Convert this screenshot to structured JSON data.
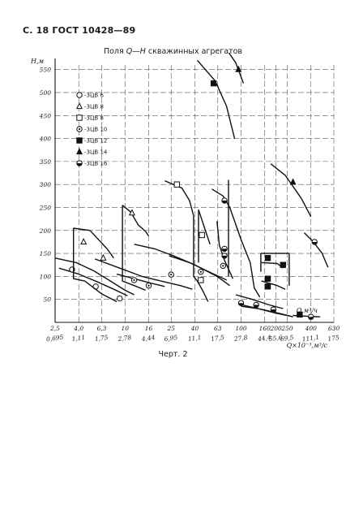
{
  "page": {
    "header": "С. 18 ГОСТ 10428—89",
    "title_prefix": "Поля ",
    "title_q": "Q",
    "title_dash": "—",
    "title_h": "H",
    "title_suffix": " скважинных агрегатов",
    "caption": "Черт. 2"
  },
  "chart_data": {
    "type": "line",
    "title": "Поля Q—H скважинных агрегатов",
    "ylabel": "H,м",
    "xlabel_top": "Q,м³/ч",
    "xlabel_bottom": "Q×10⁻³,м³/с",
    "ylim": [
      0,
      560
    ],
    "y_ticks": [
      50,
      100,
      150,
      200,
      250,
      300,
      350,
      400,
      450,
      500,
      550
    ],
    "y_tick_labels": [
      "50",
      "100",
      "150",
      "200",
      "250",
      "300",
      "350",
      "400",
      "450",
      "500",
      "550"
    ],
    "x_scale": "log",
    "xlim": [
      2.5,
      630
    ],
    "x_ticks_top": [
      "2,5",
      "4,0",
      "6,3",
      "10",
      "16",
      "25",
      "40",
      "63",
      "100",
      "160",
      "200",
      "250",
      "400",
      "630"
    ],
    "x_ticks_top_values": [
      2.5,
      4,
      6.3,
      10,
      16,
      25,
      40,
      63,
      100,
      160,
      200,
      250,
      400,
      630
    ],
    "x_ticks_bottom": [
      "0,695",
      "1,11",
      "1,75",
      "2,78",
      "4,44",
      "6,95",
      "11,1",
      "17,5",
      "27,8",
      "44,4",
      "55,6",
      "69,5",
      "111,1",
      "175"
    ],
    "grid": true,
    "legend_position": "top-left",
    "legend": [
      {
        "label": "-3ЦВ 6",
        "marker": "circle-open"
      },
      {
        "label": "-3ЦВ 8",
        "marker": "triangle-open"
      },
      {
        "label": "-3ЦВ 8",
        "marker": "square-open"
      },
      {
        "label": "-3ЦВ 10",
        "marker": "circle-dot"
      },
      {
        "label": "-3ЦВ 12",
        "marker": "square-filled"
      },
      {
        "label": "-3ЦВ 14",
        "marker": "triangle-filled"
      },
      {
        "label": "-3ЦВ 16",
        "marker": "circle-half"
      }
    ],
    "series": [
      {
        "marker": "circle-open",
        "pts": [
          [
            3.5,
            115
          ],
          [
            5.6,
            78
          ],
          [
            9.0,
            52
          ]
        ],
        "outlines": [
          [
            [
              2.5,
              140
            ],
            [
              3.8,
              130
            ],
            [
              5.4,
              112
            ],
            [
              7.5,
              90
            ],
            [
              10,
              70
            ],
            [
              12,
              60
            ]
          ],
          [
            [
              2.7,
              118
            ],
            [
              4.0,
              105
            ],
            [
              5.8,
              88
            ],
            [
              8.0,
              72
            ],
            [
              10.5,
              58
            ]
          ]
        ]
      },
      {
        "marker": "triangle-open",
        "pts": [
          [
            4.4,
            175
          ],
          [
            6.5,
            140
          ],
          [
            11.5,
            238
          ]
        ],
        "outlines": [
          [
            [
              3.6,
              205
            ],
            [
              3.6,
              95
            ],
            [
              4.5,
              90
            ],
            [
              6.3,
              62
            ],
            [
              8.5,
              45
            ]
          ],
          [
            [
              3.6,
              205
            ],
            [
              5.0,
              200
            ],
            [
              7.0,
              160
            ],
            [
              8.0,
              140
            ]
          ],
          [
            [
              9.5,
              255
            ],
            [
              9.5,
              90
            ],
            [
              12,
              80
            ],
            [
              15,
              70
            ]
          ],
          [
            [
              9.5,
              255
            ],
            [
              11.2,
              240
            ],
            [
              13,
              212
            ],
            [
              15,
              198
            ],
            [
              16,
              188
            ]
          ]
        ]
      },
      {
        "marker": "square-open",
        "pts": [
          [
            28,
            300
          ],
          [
            46,
            190
          ],
          [
            45,
            92
          ]
        ],
        "outlines": [
          [
            [
              22,
              308
            ],
            [
              31,
              292
            ],
            [
              36,
              265
            ],
            [
              39,
              232
            ]
          ],
          [
            [
              39,
              232
            ],
            [
              39,
              100
            ],
            [
              42,
              90
            ],
            [
              47,
              68
            ],
            [
              52,
              45
            ]
          ],
          [
            [
              43,
              245
            ],
            [
              50,
              195
            ],
            [
              54,
              170
            ]
          ],
          [
            [
              43,
              245
            ],
            [
              43,
              130
            ]
          ]
        ]
      },
      {
        "marker": "circle-dot",
        "pts": [
          [
            12,
            92
          ],
          [
            16,
            80
          ],
          [
            25,
            104
          ],
          [
            45,
            110
          ],
          [
            70,
            123
          ]
        ],
        "outlines": [
          [
            [
              5.5,
              138
            ],
            [
              9,
              118
            ],
            [
              14,
              100
            ],
            [
              22,
              88
            ],
            [
              30,
              80
            ],
            [
              38,
              72
            ]
          ],
          [
            [
              8.5,
              105
            ],
            [
              12,
              95
            ],
            [
              17,
              85
            ],
            [
              22,
              78
            ]
          ],
          [
            [
              12,
              170
            ],
            [
              18,
              160
            ],
            [
              26,
              145
            ],
            [
              40,
              125
            ],
            [
              62,
              100
            ],
            [
              80,
              80
            ]
          ],
          [
            [
              24,
              145
            ],
            [
              36,
              130
            ],
            [
              55,
              108
            ],
            [
              75,
              92
            ]
          ]
        ]
      },
      {
        "marker": "square-filled",
        "pts": [
          [
            58,
            520
          ],
          [
            170,
            140
          ],
          [
            230,
            125
          ],
          [
            170,
            95
          ],
          [
            170,
            78
          ],
          [
            320,
            17
          ]
        ],
        "outlines": [
          [
            [
              148,
              150
            ],
            [
              260,
              150
            ],
            [
              260,
              80
            ]
          ],
          [
            [
              148,
              150
            ],
            [
              148,
              110
            ]
          ],
          [
            [
              150,
              130
            ],
            [
              205,
              128
            ],
            [
              230,
              118
            ]
          ],
          [
            [
              150,
              90
            ],
            [
              205,
              80
            ],
            [
              240,
              72
            ]
          ],
          [
            [
              100,
              35
            ],
            [
              140,
              30
            ],
            [
              200,
              20
            ],
            [
              260,
              14
            ]
          ]
        ]
      },
      {
        "marker": "triangle-filled",
        "pts": [
          [
            95,
            550
          ],
          [
            280,
            305
          ]
        ],
        "outlines": [
          [
            [
              42,
              570
            ],
            [
              60,
              525
            ],
            [
              75,
              470
            ],
            [
              88,
              400
            ]
          ],
          [
            [
              72,
              600
            ],
            [
              90,
              565
            ],
            [
              105,
              520
            ]
          ],
          [
            [
              180,
              345
            ],
            [
              240,
              320
            ],
            [
              330,
              270
            ],
            [
              400,
              230
            ]
          ]
        ]
      },
      {
        "marker": "circle-half",
        "pts": [
          [
            72,
            265
          ],
          [
            72,
            160
          ],
          [
            72,
            145
          ],
          [
            100,
            42
          ],
          [
            135,
            38
          ],
          [
            190,
            28
          ],
          [
            430,
            175
          ],
          [
            400,
            12
          ]
        ],
        "outlines": [
          [
            [
              56,
              290
            ],
            [
              70,
              275
            ],
            [
              80,
              250
            ],
            [
              100,
              180
            ],
            [
              120,
              130
            ],
            [
              130,
              75
            ],
            [
              145,
              55
            ]
          ],
          [
            [
              78,
              100
            ],
            [
              78,
              310
            ]
          ],
          [
            [
              62,
              220
            ],
            [
              65,
              168
            ],
            [
              72,
              135
            ],
            [
              85,
              95
            ]
          ],
          [
            [
              90,
              60
            ],
            [
              125,
              50
            ],
            [
              175,
              38
            ],
            [
              230,
              30
            ]
          ],
          [
            [
              95,
              40
            ],
            [
              140,
              30
            ],
            [
              210,
              20
            ],
            [
              280,
              12
            ]
          ],
          [
            [
              350,
              195
            ],
            [
              420,
              175
            ],
            [
              500,
              150
            ],
            [
              560,
              120
            ]
          ],
          [
            [
              280,
              15
            ],
            [
              380,
              13
            ],
            [
              480,
              12
            ]
          ]
        ]
      }
    ]
  }
}
